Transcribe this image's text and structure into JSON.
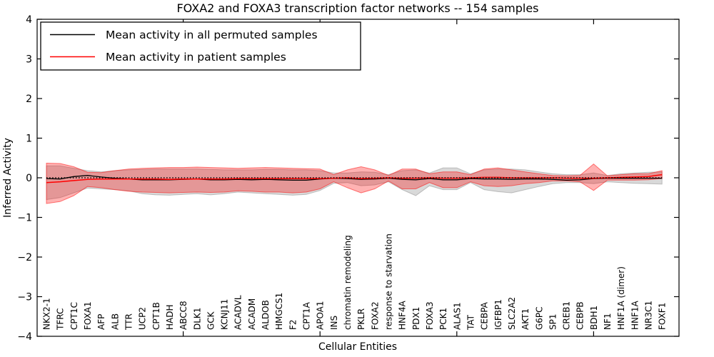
{
  "chart_data": {
    "type": "line",
    "title": "FOXA2 and FOXA3 transcription factor networks -- 154 samples",
    "xlabel": "Cellular Entities",
    "ylabel": "Inferred Activity",
    "ylim": [
      -4,
      4
    ],
    "yticks": [
      -4,
      -3,
      -2,
      -1,
      0,
      1,
      2,
      3,
      4
    ],
    "grid": false,
    "zero_line": true,
    "legend_position": "upper left",
    "legend": [
      {
        "label": "Mean activity in all permuted samples",
        "color": "#000000"
      },
      {
        "label": "Mean activity in patient samples",
        "color": "#ff0000"
      }
    ],
    "categories": [
      "NKX2-1",
      "TFRC",
      "CPT1C",
      "FOXA1",
      "AFP",
      "ALB",
      "TTR",
      "UCP2",
      "CPT1B",
      "HADH",
      "ABCC8",
      "DLK1",
      "GCK",
      "KCNJ11",
      "ACADVL",
      "ACADM",
      "ALDOB",
      "HMGCS1",
      "F2",
      "CPT1A",
      "APOA1",
      "INS",
      "chromatin remodeling",
      "PKLR",
      "FOXA2",
      "response to starvation",
      "HNF4A",
      "PDX1",
      "FOXA3",
      "PCK1",
      "ALAS1",
      "TAT",
      "CEBPA",
      "IGFBP1",
      "SLC2A2",
      "AKT1",
      "G6PC",
      "SP1",
      "CREB1",
      "CEBPB",
      "BDH1",
      "NF1",
      "HNF1A (dimer)",
      "HNF1A",
      "NR3C1",
      "FOXF1"
    ],
    "series": [
      {
        "name": "Mean activity in all permuted samples",
        "role": "mean-line",
        "color": "#000000",
        "values": [
          -0.02,
          -0.03,
          0.03,
          0.06,
          0.02,
          -0.01,
          -0.03,
          -0.05,
          -0.05,
          -0.05,
          -0.04,
          -0.03,
          -0.05,
          -0.05,
          -0.04,
          -0.05,
          -0.04,
          -0.05,
          -0.06,
          -0.06,
          -0.03,
          -0.01,
          -0.02,
          -0.04,
          -0.03,
          -0.01,
          -0.04,
          -0.05,
          -0.02,
          -0.05,
          -0.05,
          -0.02,
          -0.03,
          -0.03,
          -0.04,
          -0.03,
          -0.03,
          -0.04,
          -0.06,
          -0.05,
          -0.02,
          -0.01,
          -0.01,
          -0.01,
          -0.01,
          -0.01
        ]
      },
      {
        "name": "Mean activity in patient samples",
        "role": "mean-line",
        "color": "#ff0000",
        "values": [
          -0.12,
          -0.1,
          -0.07,
          -0.04,
          -0.03,
          -0.03,
          -0.03,
          -0.03,
          -0.03,
          -0.04,
          -0.03,
          -0.03,
          -0.03,
          -0.03,
          -0.02,
          -0.02,
          -0.02,
          -0.02,
          -0.02,
          -0.02,
          -0.02,
          -0.01,
          0.0,
          -0.02,
          -0.01,
          0.0,
          -0.01,
          -0.01,
          0.0,
          -0.01,
          -0.01,
          0.0,
          0.01,
          0.01,
          0.0,
          0.0,
          0.0,
          0.0,
          -0.01,
          -0.01,
          -0.01,
          0.0,
          0.01,
          0.02,
          0.03,
          0.08
        ]
      },
      {
        "name": "Permuted samples band upper",
        "role": "band-upper",
        "band": "permuted",
        "color": "#808080",
        "values": [
          0.3,
          0.3,
          0.24,
          0.18,
          0.15,
          0.18,
          0.2,
          0.21,
          0.22,
          0.22,
          0.22,
          0.22,
          0.21,
          0.2,
          0.2,
          0.2,
          0.21,
          0.21,
          0.2,
          0.2,
          0.18,
          0.12,
          0.12,
          0.15,
          0.14,
          0.08,
          0.18,
          0.2,
          0.12,
          0.25,
          0.25,
          0.1,
          0.2,
          0.22,
          0.22,
          0.2,
          0.15,
          0.1,
          0.08,
          0.08,
          0.12,
          0.06,
          0.1,
          0.12,
          0.14,
          0.15
        ]
      },
      {
        "name": "Permuted samples band lower",
        "role": "band-lower",
        "band": "permuted",
        "color": "#808080",
        "values": [
          -0.55,
          -0.5,
          -0.38,
          -0.26,
          -0.28,
          -0.3,
          -0.33,
          -0.4,
          -0.43,
          -0.44,
          -0.42,
          -0.4,
          -0.43,
          -0.4,
          -0.36,
          -0.38,
          -0.4,
          -0.42,
          -0.44,
          -0.42,
          -0.32,
          -0.14,
          -0.12,
          -0.2,
          -0.18,
          -0.1,
          -0.3,
          -0.45,
          -0.2,
          -0.3,
          -0.3,
          -0.12,
          -0.3,
          -0.35,
          -0.38,
          -0.3,
          -0.22,
          -0.15,
          -0.12,
          -0.12,
          -0.15,
          -0.1,
          -0.12,
          -0.14,
          -0.15,
          -0.16
        ]
      },
      {
        "name": "Patient samples band upper",
        "role": "band-upper",
        "band": "patient",
        "color": "#ff0000",
        "values": [
          0.37,
          0.36,
          0.28,
          0.14,
          0.13,
          0.18,
          0.22,
          0.24,
          0.25,
          0.26,
          0.26,
          0.27,
          0.26,
          0.25,
          0.24,
          0.25,
          0.26,
          0.25,
          0.24,
          0.23,
          0.22,
          0.08,
          0.2,
          0.28,
          0.2,
          0.06,
          0.22,
          0.22,
          0.1,
          0.15,
          0.15,
          0.08,
          0.22,
          0.25,
          0.2,
          0.15,
          0.1,
          0.06,
          0.05,
          0.06,
          0.35,
          0.05,
          0.08,
          0.1,
          0.1,
          0.18
        ]
      },
      {
        "name": "Patient samples band lower",
        "role": "band-lower",
        "band": "patient",
        "color": "#ff0000",
        "values": [
          -0.65,
          -0.6,
          -0.45,
          -0.22,
          -0.25,
          -0.3,
          -0.34,
          -0.36,
          -0.37,
          -0.38,
          -0.37,
          -0.36,
          -0.37,
          -0.36,
          -0.33,
          -0.34,
          -0.36,
          -0.36,
          -0.38,
          -0.36,
          -0.28,
          -0.1,
          -0.25,
          -0.38,
          -0.28,
          -0.08,
          -0.28,
          -0.28,
          -0.12,
          -0.25,
          -0.25,
          -0.1,
          -0.2,
          -0.22,
          -0.2,
          -0.15,
          -0.12,
          -0.08,
          -0.08,
          -0.1,
          -0.32,
          -0.06,
          -0.06,
          -0.06,
          -0.05,
          -0.02
        ]
      }
    ],
    "colors": {
      "permuted_band_fill": "#808080",
      "patient_band_fill": "#ff0000",
      "permuted_line": "#000000",
      "patient_line": "#ff0000",
      "zero_line": "#000000",
      "background": "#ffffff"
    }
  }
}
